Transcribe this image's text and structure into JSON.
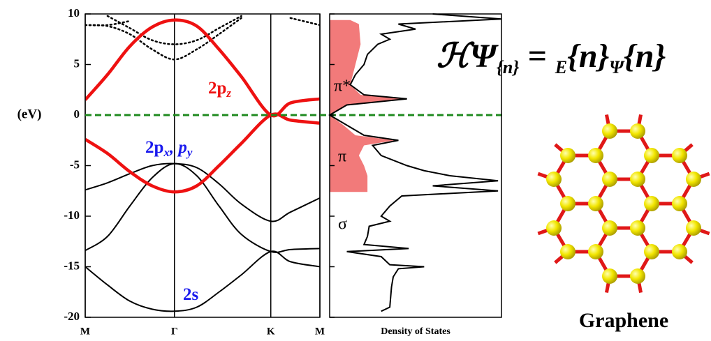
{
  "chart_data": [
    {
      "type": "bands",
      "y_label": "(eV)",
      "x": [
        0,
        0.25,
        0.5,
        0.75,
        1,
        1.25,
        1.5,
        1.75,
        2.08,
        2.3,
        2.63
      ],
      "xlim": [
        0,
        2.63
      ],
      "xticks": [
        {
          "value": 0,
          "label": "M"
        },
        {
          "value": 1,
          "label": "Γ"
        },
        {
          "value": 2.08,
          "label": "K"
        },
        {
          "value": 2.63,
          "label": "M"
        }
      ],
      "ylim": [
        -20,
        10
      ],
      "yticks": [
        -20,
        -15,
        -10,
        -5,
        0,
        5,
        10
      ],
      "fermi_level": 0,
      "fermi_color": "#1f8a1f",
      "series": [
        {
          "color": "#000000",
          "style": "dotted",
          "values": [
            8.9,
            8.8,
            8.0,
            6.5,
            5.5,
            6.5,
            8.0,
            9.6,
            null,
            null,
            null
          ]
        },
        {
          "color": "#000000",
          "style": "dotted",
          "values": [
            null,
            9.8,
            8.6,
            7.4,
            7.0,
            7.4,
            8.6,
            9.8,
            null,
            null,
            null
          ]
        },
        {
          "color": "#000000",
          "style": "dotted",
          "values": [
            8.9,
            8.9,
            9.3,
            null,
            null,
            null,
            null,
            null,
            null,
            9.6,
            8.9
          ]
        },
        {
          "color": "#000000",
          "style": "solid",
          "values": [
            -7.4,
            -6.7,
            -5.8,
            -5.0,
            -4.8,
            -5.2,
            -6.8,
            -8.8,
            -10.5,
            -9.6,
            -8.2
          ]
        },
        {
          "color": "#000000",
          "style": "solid",
          "values": [
            -13.4,
            -12.0,
            -9.0,
            -6.2,
            -4.8,
            -6.0,
            -9.0,
            -11.8,
            -13.5,
            -13.3,
            -13.2
          ]
        },
        {
          "color": "#000000",
          "style": "solid",
          "values": [
            -15.0,
            -16.8,
            -18.4,
            -19.2,
            -19.4,
            -19.0,
            -17.5,
            -15.8,
            -13.5,
            -14.5,
            -15.0
          ]
        },
        {
          "color": "#ee1111",
          "style": "thick",
          "values": [
            -2.4,
            -3.8,
            -5.6,
            -7.0,
            -7.6,
            -7.0,
            -5.0,
            -2.8,
            0,
            -0.5,
            -0.8
          ]
        },
        {
          "color": "#ee1111",
          "style": "thick",
          "values": [
            1.5,
            4.0,
            6.8,
            8.7,
            9.4,
            8.8,
            6.5,
            3.8,
            0,
            1.2,
            1.6
          ]
        }
      ],
      "annotations": [
        {
          "color": "#ee1111",
          "parts": [
            "2p",
            "z"
          ]
        },
        {
          "color": "#1a1aee",
          "parts": [
            "2p",
            "x",
            ", p",
            "y"
          ]
        },
        {
          "color": "#1a1aee",
          "parts": [
            "2s"
          ]
        }
      ]
    },
    {
      "type": "dos",
      "x_label": "Density of States",
      "xlim": [
        0,
        1
      ],
      "ylim": [
        -20,
        10
      ],
      "yticks": [
        -20,
        -15,
        -10,
        -5,
        0,
        5,
        10
      ],
      "fills": [
        {
          "color": "#f27a7a",
          "energy": [
            -7.6,
            -7,
            -6,
            -5,
            -4,
            -3,
            -2.5,
            -2,
            -1,
            0
          ],
          "values": [
            0.22,
            0.22,
            0.22,
            0.2,
            0.17,
            0.2,
            0.38,
            0.15,
            0.08,
            0
          ]
        },
        {
          "color": "#f27a7a",
          "energy": [
            0,
            1,
            1.6,
            2,
            3,
            5,
            7,
            9,
            9.4
          ],
          "values": [
            0,
            0.1,
            0.42,
            0.18,
            0.12,
            0.15,
            0.18,
            0.17,
            0.12
          ]
        }
      ],
      "energy": [
        -19.4,
        -19,
        -17,
        -16,
        -15.2,
        -15,
        -14.8,
        -14,
        -13.5,
        -13.2,
        -12.8,
        -12,
        -11,
        -10.5,
        -10,
        -9,
        -8,
        -7.5,
        -7,
        -6.5,
        -6,
        -5.5,
        -5,
        -4,
        -3,
        -2.5,
        -2,
        -1,
        0,
        1,
        1.6,
        2,
        3,
        4,
        5,
        6,
        7,
        7.5,
        8,
        8.5,
        9,
        9.5,
        10
      ],
      "series": [
        {
          "color": "#000000",
          "values": [
            0.3,
            0.35,
            0.36,
            0.37,
            0.4,
            0.55,
            0.35,
            0.3,
            0.1,
            0.46,
            0.2,
            0.22,
            0.23,
            0.35,
            0.3,
            0.35,
            0.42,
            0.98,
            0.6,
            0.98,
            0.7,
            0.55,
            0.45,
            0.3,
            0.25,
            0.4,
            0.2,
            0.1,
            0,
            0.1,
            0.45,
            0.2,
            0.12,
            0.15,
            0.2,
            0.22,
            0.28,
            0.35,
            0.3,
            0.5,
            0.4,
            1.0,
            0.6
          ]
        }
      ],
      "annotations": [
        "π*",
        "π",
        "σ"
      ]
    }
  ],
  "equation": [
    "ℋΨ",
    "{n}",
    " = ",
    "E",
    "{n}",
    "Ψ",
    "{n}"
  ],
  "structure_label": "Graphene"
}
